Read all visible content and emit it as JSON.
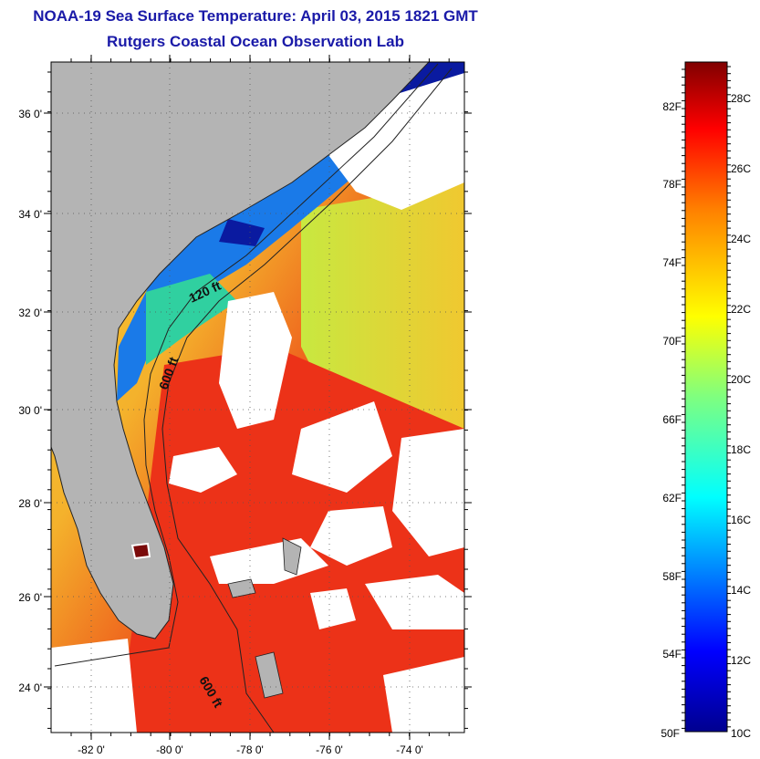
{
  "header": {
    "title": "NOAA-19 Sea Surface Temperature:  April 03, 2015 1821 GMT",
    "subtitle": "Rutgers Coastal Ocean Observation Lab"
  },
  "map": {
    "lat_labels": [
      "36 0'",
      "34 0'",
      "32 0'",
      "30 0'",
      "28 0'",
      "26 0'",
      "24 0'"
    ],
    "lon_labels": [
      "-82 0'",
      "-80 0'",
      "-78 0'",
      "-76 0'",
      "-74 0'"
    ],
    "contours": [
      {
        "label": "120 ft"
      },
      {
        "label": "600 ft"
      },
      {
        "label": "600 ft"
      }
    ]
  },
  "colorbar": {
    "fahrenheit_labels": [
      "82F",
      "78F",
      "74F",
      "70F",
      "66F",
      "62F",
      "58F",
      "54F",
      "50F"
    ],
    "celsius_labels": [
      "28C",
      "26C",
      "24C",
      "22C",
      "20C",
      "18C",
      "16C",
      "14C",
      "12C",
      "10C"
    ],
    "colors": {
      "min": "#00008f",
      "mid": "#ffff00",
      "max": "#800000"
    }
  },
  "colors": {
    "land": "#b4b4b4",
    "title": "#1a1aa8",
    "warm_water": "#ee2a14",
    "cool_water": "#0050e0"
  }
}
